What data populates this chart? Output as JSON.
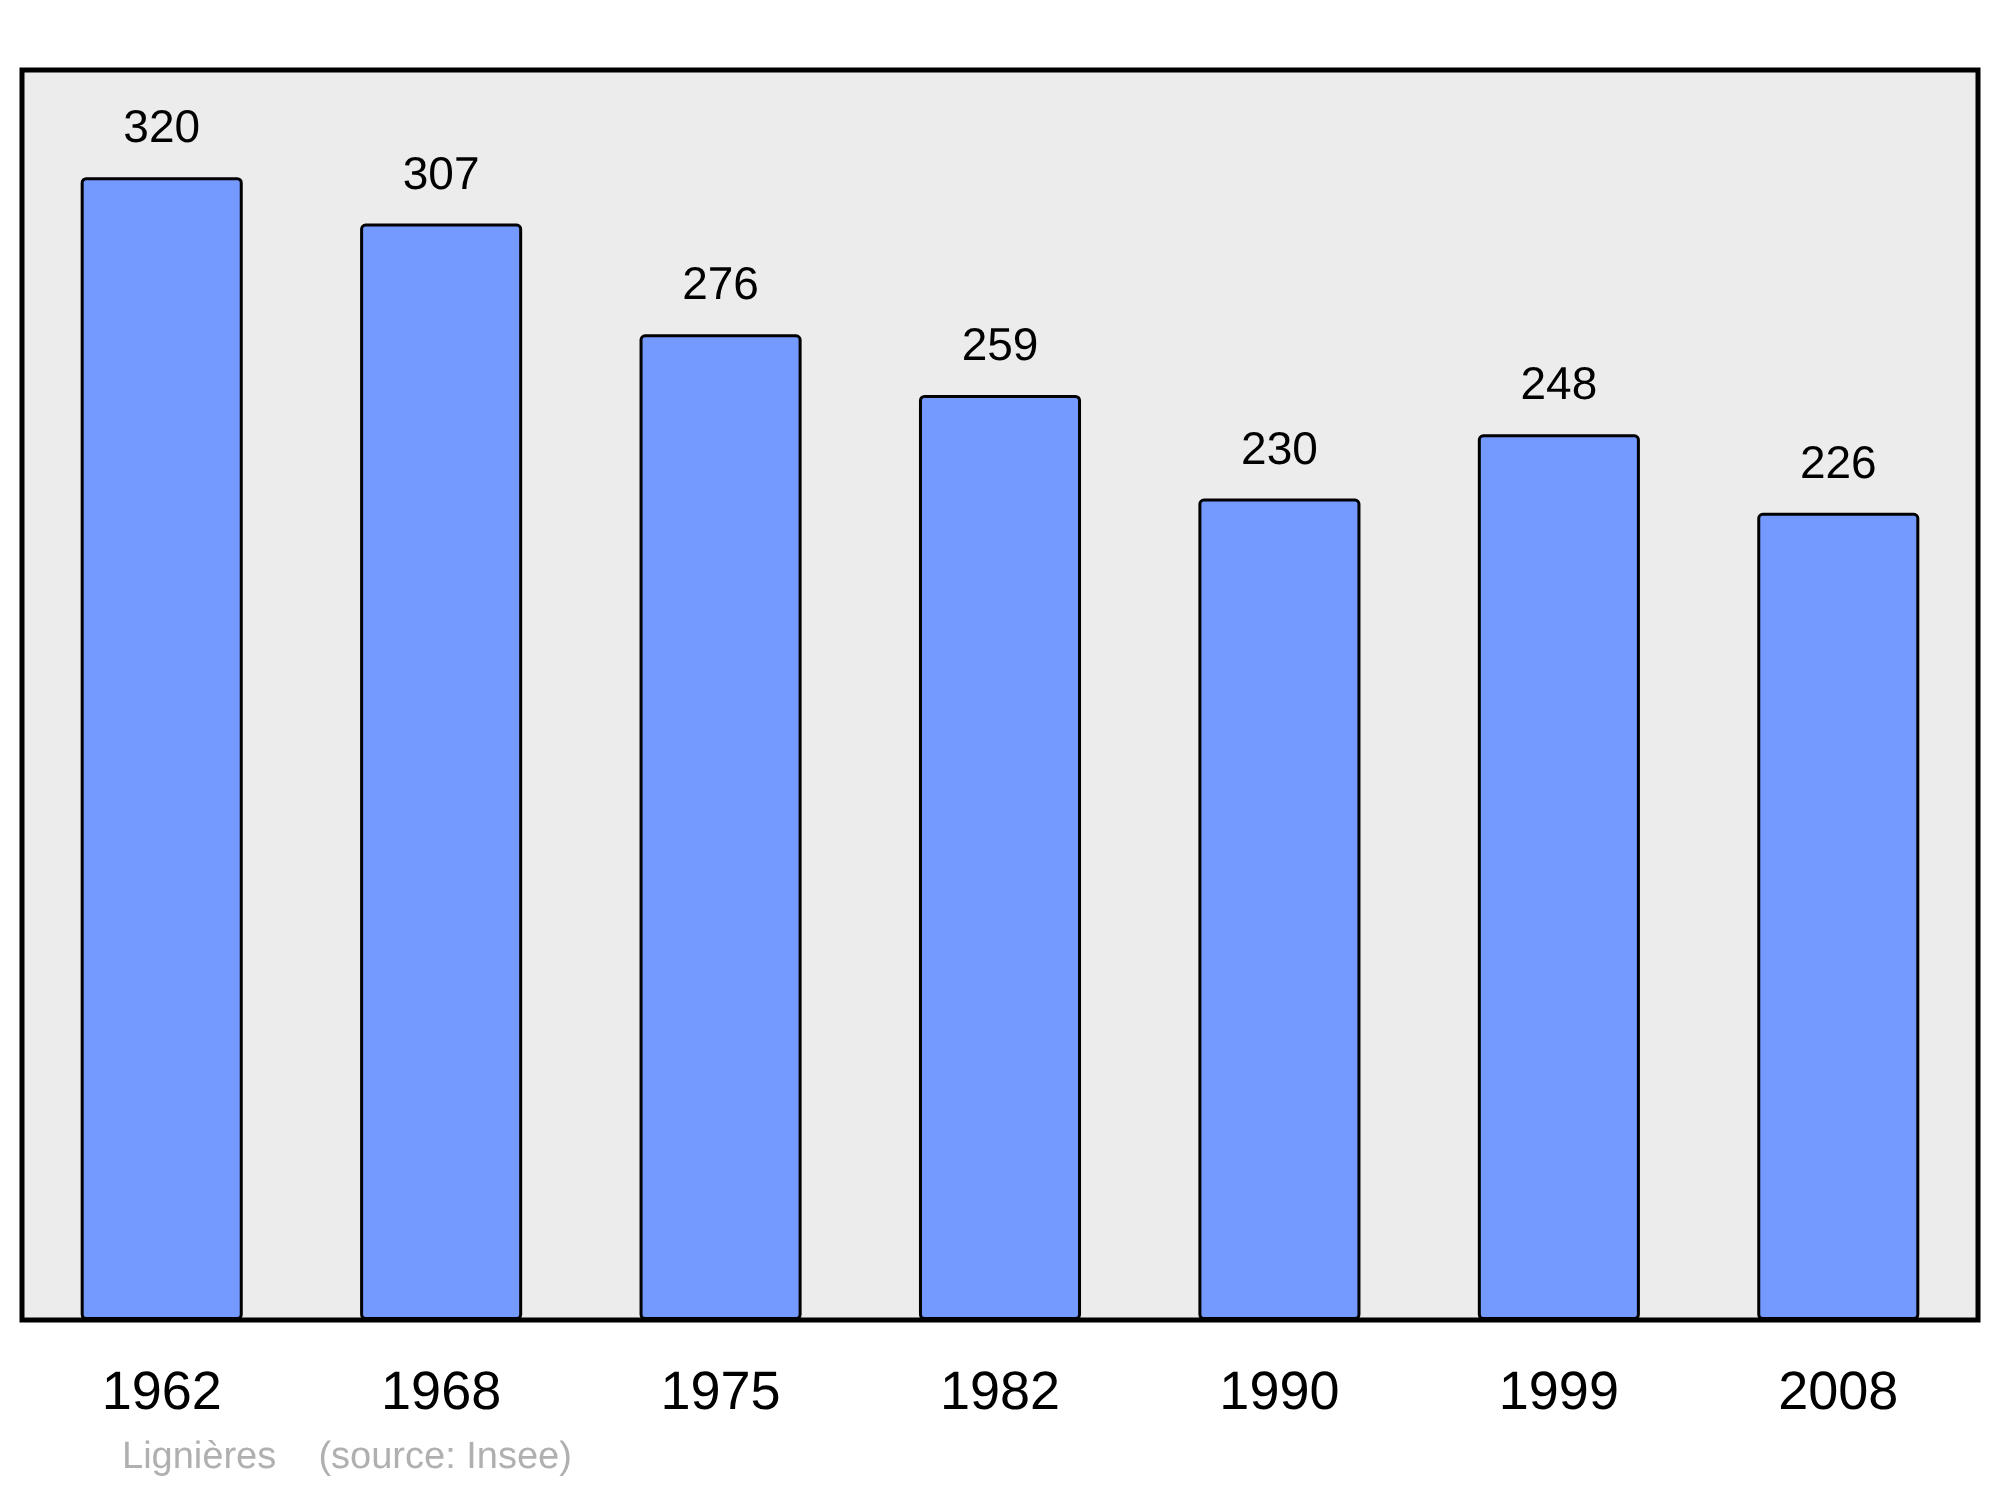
{
  "chart_data": {
    "type": "bar",
    "categories": [
      "1962",
      "1968",
      "1975",
      "1982",
      "1990",
      "1999",
      "2008"
    ],
    "values": [
      320,
      307,
      276,
      259,
      230,
      248,
      226
    ],
    "color": "#7499ff",
    "data_labels": true,
    "annotations": [
      "Lignières    (source: Insee)"
    ]
  }
}
